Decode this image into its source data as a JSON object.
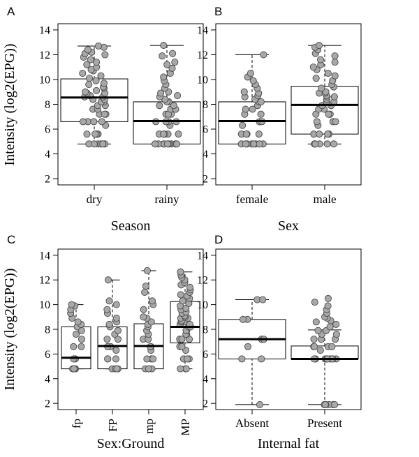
{
  "chart_data": [
    {
      "type": "box",
      "panel": "A",
      "ylabel": "Intensity (log2(EPG))",
      "xlabel": "Season",
      "ylim": [
        1.5,
        14.5
      ],
      "yticks": [
        "2",
        "4",
        "6",
        "8",
        "10",
        "12",
        "14"
      ],
      "categories": [
        "dry",
        "rainy"
      ],
      "boxes": [
        {
          "q1": 6.6,
          "median": 8.55,
          "q3": 10.05,
          "whisker_low": 4.8,
          "whisker_high": 12.7,
          "points": [
            4.8,
            4.8,
            4.8,
            4.8,
            4.8,
            4.8,
            5.6,
            5.6,
            5.6,
            5.6,
            5.6,
            6.3,
            6.6,
            6.6,
            6.6,
            6.6,
            7.2,
            7.2,
            7.2,
            7.6,
            7.6,
            7.9,
            7.9,
            8.2,
            8.2,
            8.4,
            8.4,
            8.6,
            8.6,
            8.7,
            8.9,
            8.9,
            9.0,
            9.1,
            9.3,
            9.4,
            9.6,
            9.7,
            9.9,
            10.1,
            10.3,
            10.5,
            10.7,
            10.8,
            11.0,
            11.2,
            11.4,
            11.6,
            11.8,
            12.0,
            12.1,
            12.2,
            12.4,
            12.6,
            12.7
          ]
        },
        {
          "q1": 4.8,
          "median": 6.65,
          "q3": 8.2,
          "whisker_low": 4.8,
          "whisker_high": 12.75,
          "points": [
            4.8,
            4.8,
            4.8,
            4.8,
            4.8,
            4.8,
            4.8,
            4.8,
            4.8,
            5.6,
            5.6,
            5.6,
            5.6,
            5.6,
            6.3,
            6.6,
            6.6,
            6.6,
            6.6,
            7.2,
            7.2,
            7.2,
            7.6,
            7.6,
            7.9,
            7.9,
            8.2,
            8.2,
            8.4,
            8.6,
            8.7,
            8.9,
            9.0,
            9.3,
            9.6,
            9.9,
            10.2,
            10.5,
            10.9,
            11.2,
            11.4,
            11.9,
            12.1,
            12.75
          ]
        }
      ]
    },
    {
      "type": "box",
      "panel": "B",
      "ylabel": "",
      "xlabel": "Sex",
      "ylim": [
        1.5,
        14.5
      ],
      "yticks": [
        "2",
        "4",
        "6",
        "8",
        "10",
        "12",
        "14"
      ],
      "categories": [
        "female",
        "male"
      ],
      "boxes": [
        {
          "q1": 4.8,
          "median": 6.65,
          "q3": 8.2,
          "whisker_low": 4.8,
          "whisker_high": 12.0,
          "points": [
            4.8,
            4.8,
            4.8,
            4.8,
            4.8,
            4.8,
            4.8,
            4.8,
            5.6,
            5.6,
            5.6,
            5.6,
            6.3,
            6.6,
            6.6,
            6.6,
            7.2,
            7.2,
            7.6,
            7.6,
            7.9,
            8.2,
            8.2,
            8.4,
            8.6,
            8.7,
            8.9,
            9.0,
            9.3,
            9.6,
            9.9,
            10.2,
            10.5,
            12.0
          ]
        },
        {
          "q1": 5.6,
          "median": 7.95,
          "q3": 9.45,
          "whisker_low": 4.8,
          "whisker_high": 12.75,
          "points": [
            4.8,
            4.8,
            4.8,
            4.8,
            4.8,
            4.8,
            5.6,
            5.6,
            5.6,
            5.6,
            5.6,
            6.3,
            6.6,
            6.6,
            6.6,
            7.2,
            7.2,
            7.2,
            7.6,
            7.6,
            7.9,
            7.9,
            8.2,
            8.2,
            8.4,
            8.6,
            8.6,
            8.7,
            8.9,
            8.9,
            9.0,
            9.3,
            9.4,
            9.6,
            9.9,
            10.1,
            10.3,
            10.5,
            10.8,
            11.0,
            11.2,
            11.4,
            11.6,
            11.9,
            12.1,
            12.4,
            12.6,
            12.75
          ]
        }
      ]
    },
    {
      "type": "box",
      "panel": "C",
      "ylabel": "Intensity (log2(EPG))",
      "xlabel": "Sex:Ground",
      "ylim": [
        1.5,
        14.5
      ],
      "yticks": [
        "2",
        "4",
        "6",
        "8",
        "10",
        "12",
        "14"
      ],
      "categories": [
        "fp",
        "FP",
        "mp",
        "MP"
      ],
      "boxes": [
        {
          "q1": 4.8,
          "median": 5.7,
          "q3": 8.2,
          "whisker_low": 4.8,
          "whisker_high": 10.0,
          "points": [
            4.8,
            4.8,
            4.8,
            4.8,
            5.6,
            5.6,
            6.6,
            6.6,
            7.2,
            7.6,
            7.9,
            8.2,
            8.4,
            8.6,
            8.9,
            9.3,
            9.6,
            9.9,
            10.0
          ]
        },
        {
          "q1": 4.8,
          "median": 6.65,
          "q3": 8.2,
          "whisker_low": 4.8,
          "whisker_high": 12.0,
          "points": [
            4.8,
            4.8,
            4.8,
            4.8,
            5.6,
            5.6,
            5.6,
            6.3,
            6.6,
            6.6,
            7.2,
            7.2,
            7.6,
            7.9,
            8.2,
            8.4,
            8.6,
            8.9,
            9.3,
            9.6,
            10.0,
            10.3,
            12.0
          ]
        },
        {
          "q1": 4.8,
          "median": 6.65,
          "q3": 8.45,
          "whisker_low": 4.8,
          "whisker_high": 12.75,
          "points": [
            4.8,
            4.8,
            4.8,
            4.8,
            5.6,
            5.6,
            5.6,
            6.3,
            6.6,
            6.6,
            7.2,
            7.2,
            7.6,
            7.9,
            8.2,
            8.4,
            8.6,
            8.9,
            9.0,
            9.6,
            10.0,
            10.3,
            11.0,
            11.5,
            12.75
          ]
        },
        {
          "q1": 6.9,
          "median": 8.2,
          "q3": 10.25,
          "whisker_low": 4.8,
          "whisker_high": 12.65,
          "points": [
            4.8,
            4.8,
            4.8,
            4.8,
            5.6,
            5.6,
            5.6,
            6.3,
            6.6,
            6.6,
            7.2,
            7.2,
            7.2,
            7.6,
            7.6,
            7.9,
            7.9,
            8.2,
            8.2,
            8.4,
            8.4,
            8.6,
            8.6,
            8.7,
            8.9,
            8.9,
            9.0,
            9.1,
            9.3,
            9.4,
            9.6,
            9.7,
            9.9,
            10.1,
            10.3,
            10.5,
            10.7,
            10.8,
            11.0,
            11.2,
            11.4,
            11.6,
            11.8,
            12.0,
            12.2,
            12.4,
            12.65
          ]
        }
      ]
    },
    {
      "type": "box",
      "panel": "D",
      "ylabel": "",
      "xlabel": "Internal fat",
      "ylim": [
        1.5,
        14.5
      ],
      "yticks": [
        "2",
        "4",
        "6",
        "8",
        "10",
        "12",
        "14"
      ],
      "categories": [
        "Absent",
        "Present"
      ],
      "boxes": [
        {
          "q1": 5.6,
          "median": 7.2,
          "q3": 8.8,
          "whisker_low": 1.9,
          "whisker_high": 10.4,
          "points": [
            1.9,
            5.6,
            5.6,
            6.6,
            7.2,
            7.2,
            8.8,
            8.8,
            10.4,
            10.4
          ]
        },
        {
          "q1": 5.6,
          "median": 5.6,
          "q3": 6.65,
          "whisker_low": 1.9,
          "whisker_high": 7.95,
          "points": [
            1.9,
            1.9,
            1.9,
            1.9,
            1.9,
            1.9,
            5.6,
            5.6,
            5.6,
            5.6,
            5.6,
            5.6,
            5.6,
            5.6,
            5.6,
            6.3,
            6.6,
            6.6,
            6.6,
            6.6,
            7.2,
            7.2,
            7.2,
            7.6,
            7.6,
            7.9,
            7.9,
            8.2,
            8.4,
            8.6,
            8.7,
            8.9,
            9.0,
            9.3,
            9.6,
            9.9,
            10.2,
            10.5
          ]
        }
      ]
    }
  ]
}
